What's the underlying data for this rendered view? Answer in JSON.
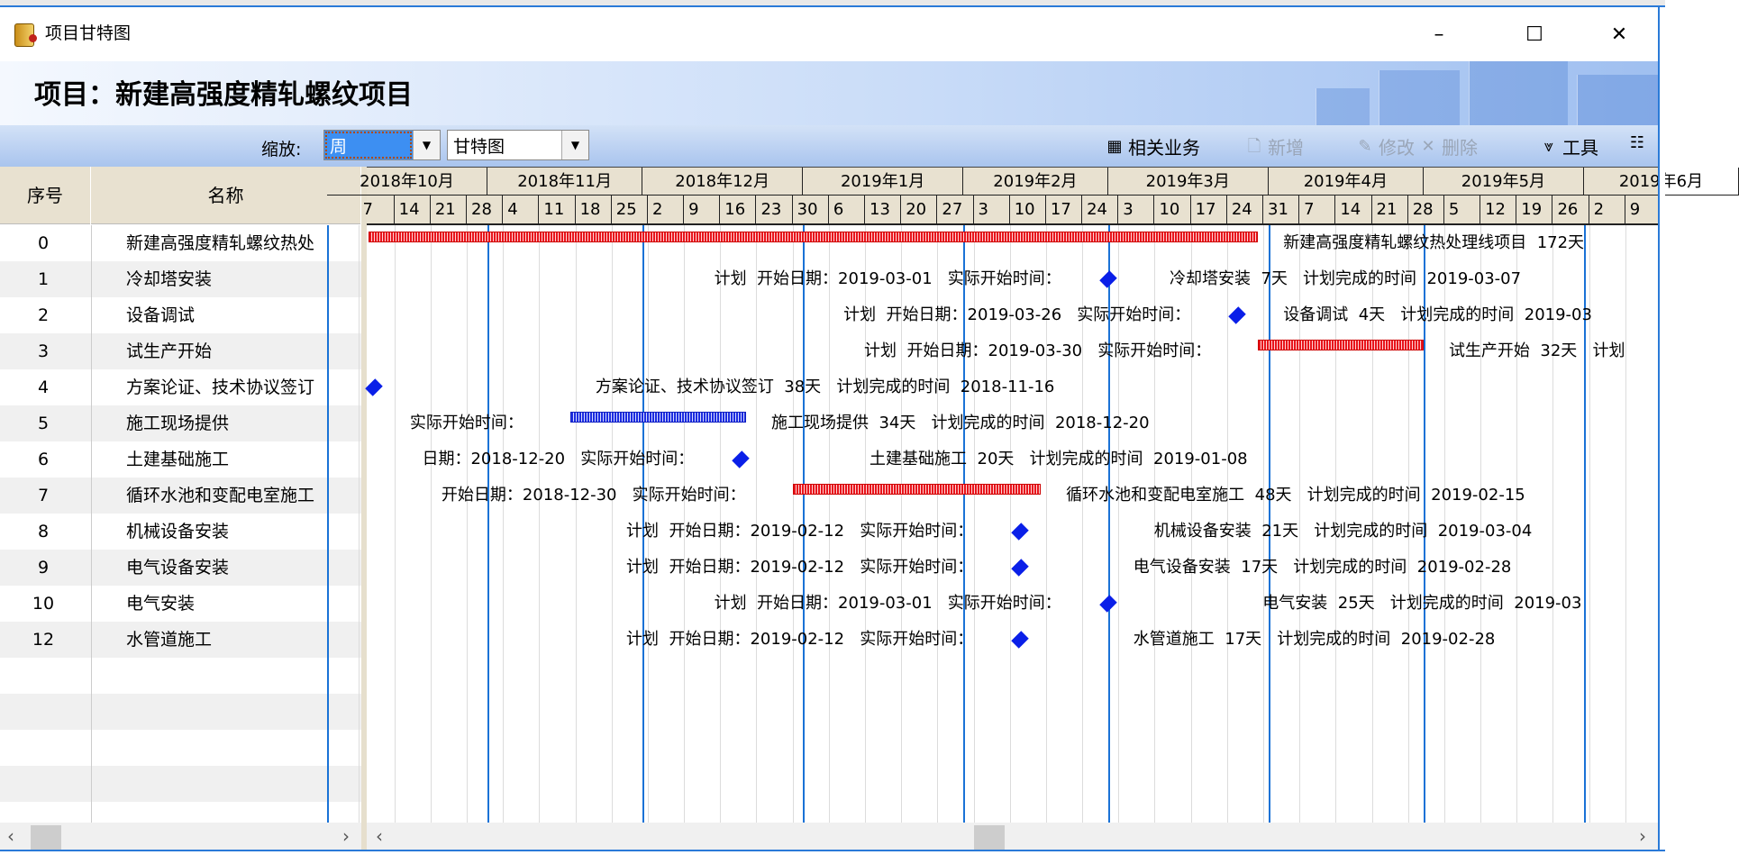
{
  "window": {
    "title": "项目甘特图",
    "minimize": "–",
    "maximize": "☐",
    "close": "✕"
  },
  "header": {
    "title": "项目：新建高强度精轧螺纹项目"
  },
  "toolbar": {
    "zoom_label": "缩放:",
    "zoom_value": "周",
    "view_value": "甘特图",
    "buttons": [
      {
        "label": "相关业务",
        "icon": "related-business-icon",
        "glyph": "▦",
        "enabled": true
      },
      {
        "label": "新增",
        "icon": "new-document-icon",
        "glyph": "🗋",
        "enabled": false
      },
      {
        "label": "修改",
        "icon": "edit-icon",
        "glyph": "✎",
        "enabled": false
      },
      {
        "label": "删除",
        "icon": "delete-x-icon",
        "glyph": "✕",
        "enabled": false
      },
      {
        "label": "工具",
        "icon": "tools-funnel-icon",
        "glyph": "⩔",
        "enabled": true
      },
      {
        "label": "",
        "icon": "grid-menu-icon",
        "glyph": "☷",
        "enabled": true
      }
    ]
  },
  "table": {
    "columns": [
      "序号",
      "名称"
    ],
    "rows": [
      {
        "no": "0",
        "name": "新建高强度精轧螺纹热处"
      },
      {
        "no": "1",
        "name": "冷却塔安装"
      },
      {
        "no": "2",
        "name": "设备调试"
      },
      {
        "no": "3",
        "name": "试生产开始"
      },
      {
        "no": "4",
        "name": "方案论证、技术协议签订"
      },
      {
        "no": "5",
        "name": "施工现场提供"
      },
      {
        "no": "6",
        "name": "土建基础施工"
      },
      {
        "no": "7",
        "name": "循环水池和变配电室施工"
      },
      {
        "no": "8",
        "name": "机械设备安装"
      },
      {
        "no": "9",
        "name": "电气设备安装"
      },
      {
        "no": "10",
        "name": "电气安装"
      },
      {
        "no": "12",
        "name": "水管道施工"
      }
    ],
    "empty_rows": 5
  },
  "timeline": {
    "months": [
      "2018年10月",
      "2018年11月",
      "2018年12月",
      "2019年1月",
      "2019年2月",
      "2019年3月",
      "2019年4月",
      "2019年5月",
      "2019年6月"
    ],
    "weeks": [
      "7",
      "14",
      "21",
      "28",
      "4",
      "11",
      "18",
      "25",
      "2",
      "9",
      "16",
      "23",
      "30",
      "6",
      "13",
      "20",
      "27",
      "3",
      "10",
      "17",
      "24",
      "3",
      "10",
      "17",
      "24",
      "31",
      "7",
      "14",
      "21",
      "28",
      "5",
      "12",
      "19",
      "26",
      "2",
      "9"
    ],
    "colors": {
      "plan_bar": "#e8141c",
      "actual_bar": "#1c2ce0",
      "milestone": "#0a1fe8",
      "month_line": "#1a72d6",
      "week_line": "#dcdcdc"
    }
  },
  "gantt": [
    {
      "type": "bar",
      "color": "red",
      "start": "2018-10-09",
      "end": "2019-03-29",
      "left_label": "",
      "right_label": "新建高强度精轧螺纹热处理线项目  172天"
    },
    {
      "type": "milestone",
      "start": "2019-03-01",
      "end": "2019-03-07",
      "left_label": "计划  开始日期：2019-03-01   实际开始时间：",
      "right_label": "冷却塔安装  7天   计划完成的时间  2019-03-07"
    },
    {
      "type": "milestone",
      "start": "2019-03-26",
      "end": "2019-03-29",
      "left_label": "计划  开始日期：2019-03-26   实际开始时间：",
      "right_label": "设备调试  4天   计划完成的时间  2019-03"
    },
    {
      "type": "bar",
      "color": "red",
      "start": "2019-03-30",
      "end": "2019-04-30",
      "left_label": "计划  开始日期：2019-03-30   实际开始时间：",
      "right_label": "试生产开始  32天   计划"
    },
    {
      "type": "milestone",
      "start": "2018-10-10",
      "end": "2018-11-16",
      "left_label": "",
      "right_label": "方案论证、技术协议签订  38天   计划完成的时间  2018-11-16"
    },
    {
      "type": "bar",
      "color": "blue",
      "start": "2018-11-17",
      "end": "2018-12-20",
      "left_label": "实际开始时间：",
      "right_label": "施工现场提供  34天   计划完成的时间  2018-12-20"
    },
    {
      "type": "milestone",
      "start": "2018-12-20",
      "end": "2019-01-08",
      "left_label": "日期：2018-12-20   实际开始时间：",
      "right_label": "土建基础施工  20天   计划完成的时间  2019-01-08"
    },
    {
      "type": "bar",
      "color": "red",
      "start": "2018-12-30",
      "end": "2019-02-15",
      "left_label": "开始日期：2018-12-30   实际开始时间：",
      "right_label": "循环水池和变配电室施工  48天   计划完成的时间  2019-02-15"
    },
    {
      "type": "milestone",
      "start": "2019-02-12",
      "end": "2019-03-04",
      "left_label": "计划  开始日期：2019-02-12   实际开始时间：",
      "right_label": "机械设备安装  21天   计划完成的时间  2019-03-04"
    },
    {
      "type": "milestone",
      "start": "2019-02-12",
      "end": "2019-02-28",
      "left_label": "计划  开始日期：2019-02-12   实际开始时间：",
      "right_label": "电气设备安装  17天   计划完成的时间  2019-02-28"
    },
    {
      "type": "milestone",
      "start": "2019-03-01",
      "end": "2019-03-25",
      "left_label": "计划  开始日期：2019-03-01   实际开始时间：",
      "right_label": "电气安装  25天   计划完成的时间  2019-03"
    },
    {
      "type": "milestone",
      "start": "2019-02-12",
      "end": "2019-02-28",
      "left_label": "计划  开始日期：2019-02-12   实际开始时间：",
      "right_label": "水管道施工  17天   计划完成的时间  2019-02-28"
    }
  ],
  "scroll": {
    "left_arrow": "‹",
    "right_arrow": "›"
  }
}
